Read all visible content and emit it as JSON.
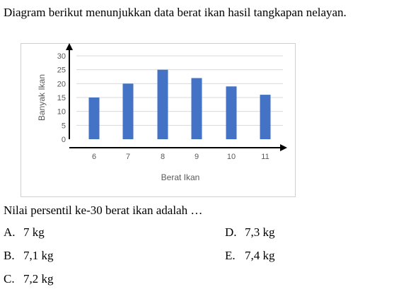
{
  "question": "Diagram berikut menunjukkan data berat ikan hasil tangkapan nelayan.",
  "chart_data": {
    "type": "bar",
    "categories": [
      "6",
      "7",
      "8",
      "9",
      "10",
      "11"
    ],
    "values": [
      15,
      20,
      25,
      22,
      19,
      16
    ],
    "title": "",
    "xlabel": "Berat Ikan",
    "ylabel": "Banyak Ikan",
    "ylim": [
      0,
      30
    ],
    "yticks": [
      "0",
      "5",
      "10",
      "15",
      "20",
      "25",
      "30"
    ],
    "grid": true,
    "bar_color": "#4472C4"
  },
  "prompt": "Nilai persentil ke-30 berat ikan adalah …",
  "options": [
    {
      "letter": "A.",
      "text": "7 kg"
    },
    {
      "letter": "B.",
      "text": "7,1 kg"
    },
    {
      "letter": "C.",
      "text": "7,2 kg"
    },
    {
      "letter": "D.",
      "text": "7,3 kg"
    },
    {
      "letter": "E.",
      "text": "7,4 kg"
    }
  ]
}
